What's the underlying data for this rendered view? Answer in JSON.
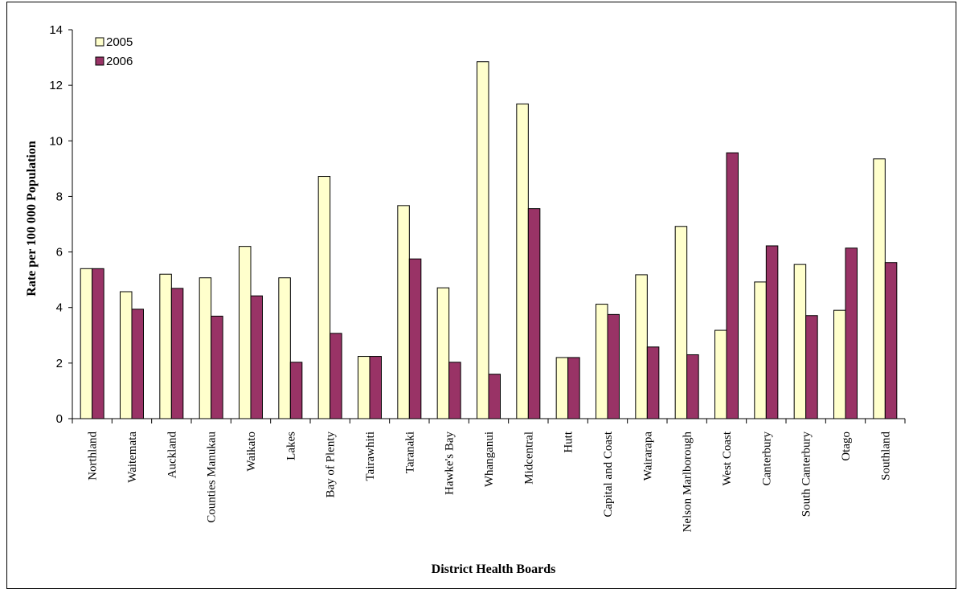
{
  "chart_data": {
    "type": "bar",
    "title": "",
    "xlabel": "District Health Boards",
    "ylabel": "Rate per 100 000 Population",
    "ylim": [
      0,
      14
    ],
    "yticks": [
      0,
      2,
      4,
      6,
      8,
      10,
      12,
      14
    ],
    "grid": false,
    "legend_position": "top-left",
    "categories": [
      "Northland",
      "Waitemata",
      "Auckland",
      "Counties Manukau",
      "Waikato",
      "Lakes",
      "Bay of Plenty",
      "Tairawhiti",
      "Taranaki",
      "Hawke's Bay",
      "Whanganui",
      "Midcentral",
      "Hutt",
      "Capital and Coast",
      "Wairarapa",
      "Nelson Marlborough",
      "West Coast",
      "Canterbury",
      "South Canterbury",
      "Otago",
      "Southland"
    ],
    "series": [
      {
        "name": "2005",
        "color": "#ffffcc",
        "values": [
          5.4,
          4.57,
          5.2,
          5.07,
          6.2,
          5.07,
          8.72,
          2.24,
          7.67,
          4.71,
          12.85,
          11.33,
          2.2,
          4.12,
          5.18,
          6.92,
          3.18,
          4.92,
          5.55,
          3.9,
          9.35
        ]
      },
      {
        "name": "2006",
        "color": "#993366",
        "values": [
          5.4,
          3.94,
          4.69,
          3.69,
          4.42,
          2.03,
          3.07,
          2.24,
          5.75,
          2.03,
          1.6,
          7.56,
          2.2,
          3.75,
          2.58,
          2.3,
          9.57,
          6.22,
          3.71,
          6.14,
          5.62
        ]
      }
    ]
  }
}
